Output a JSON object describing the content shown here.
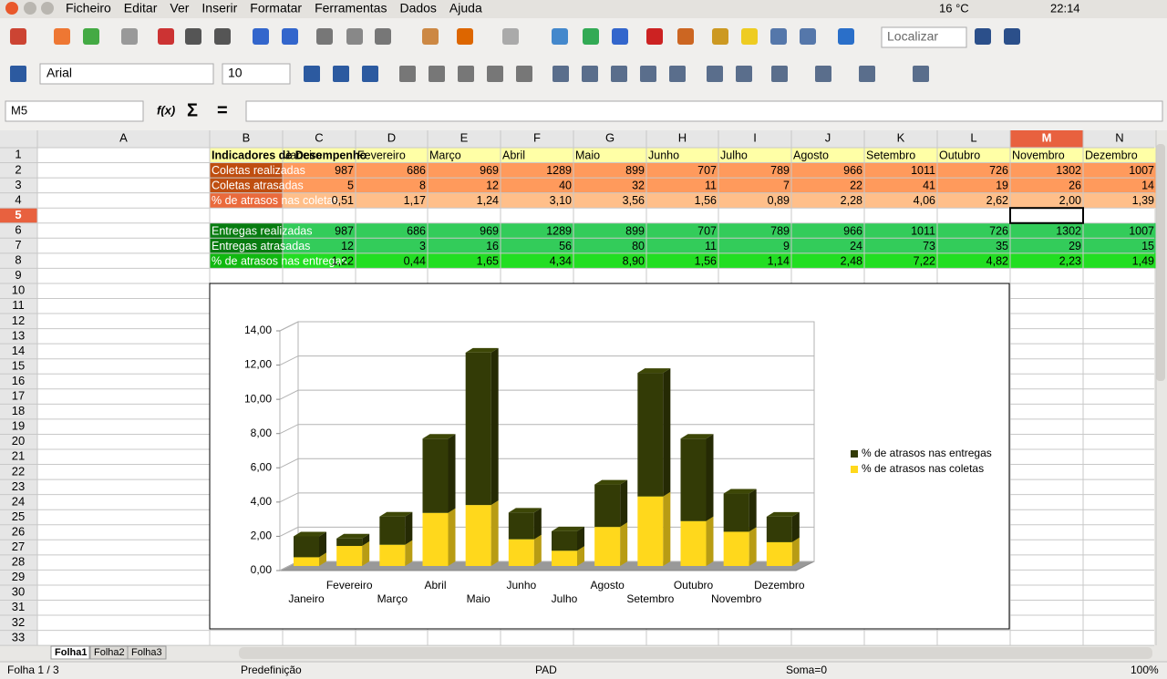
{
  "top_bar": {
    "menus": [
      "Ficheiro",
      "Editar",
      "Ver",
      "Inserir",
      "Formatar",
      "Ferramentas",
      "Dados",
      "Ajuda"
    ],
    "weather": "16 °C",
    "time": "22:14"
  },
  "toolbar": {
    "font": "Arial",
    "size": 10,
    "search": "Localizar"
  },
  "formula_bar": {
    "cell_ref": "M5",
    "symbols": [
      "f(x)",
      "Σ",
      "="
    ]
  },
  "sheet": {
    "columns": [
      "A",
      "B",
      "C",
      "D",
      "E",
      "F",
      "G",
      "H",
      "I",
      "J",
      "K",
      "L",
      "M",
      "N"
    ],
    "rows": [
      1,
      2,
      3,
      4,
      5,
      6,
      7,
      8,
      9,
      10,
      11,
      12,
      13,
      14,
      15,
      16,
      17,
      18,
      19,
      20,
      21,
      22,
      23,
      24,
      25,
      26,
      27,
      28,
      29,
      30,
      31,
      32,
      33
    ],
    "cells": [
      [
        "Indicadores de Desempenho",
        "Janeiro",
        "Fevereiro",
        "Março",
        "Abril",
        "Maio",
        "Junho",
        "Julho",
        "Agosto",
        "Setembro",
        "Outubro",
        "Novembro",
        "Dezembro"
      ],
      [
        "Coletas realizadas",
        987,
        686,
        969,
        1289,
        899,
        707,
        789,
        966,
        1011,
        726,
        1302,
        1007
      ],
      [
        "Coletas atrasadas",
        5,
        8,
        12,
        40,
        32,
        11,
        7,
        22,
        41,
        19,
        26,
        14
      ],
      [
        "% de atrasos nas coletas",
        "0,51",
        "1,17",
        "1,24",
        "3,10",
        "3,56",
        "1,56",
        "0,89",
        "2,28",
        "4,06",
        "2,62",
        "2,00",
        "1,39"
      ],
      [],
      [
        "Entregas realizadas",
        987,
        686,
        969,
        1289,
        899,
        707,
        789,
        966,
        1011,
        726,
        1302,
        1007
      ],
      [
        "Entregas atrasadas",
        12,
        3,
        16,
        56,
        80,
        11,
        9,
        24,
        73,
        35,
        29,
        15
      ],
      [
        "% de atrasos nas entregas",
        "1,22",
        "0,44",
        "1,65",
        "4,34",
        "8,90",
        "1,56",
        "1,14",
        "2,48",
        "7,22",
        "4,82",
        "2,23",
        "1,49"
      ]
    ]
  },
  "chart_data": {
    "type": "bar",
    "stacked": true,
    "categories": [
      "Janeiro",
      "Fevereiro",
      "Março",
      "Abril",
      "Maio",
      "Junho",
      "Julho",
      "Agosto",
      "Setembro",
      "Outubro",
      "Novembro",
      "Dezembro"
    ],
    "series": [
      {
        "name": "% de atrasos nas entregas",
        "color": "#333b06",
        "values": [
          1.22,
          0.44,
          1.65,
          4.34,
          8.9,
          1.56,
          1.14,
          2.48,
          7.22,
          4.82,
          2.23,
          1.49
        ]
      },
      {
        "name": "% de atrasos nas coletas",
        "color": "#ffd81c",
        "values": [
          0.51,
          1.17,
          1.24,
          3.1,
          3.56,
          1.56,
          0.89,
          2.28,
          4.06,
          2.62,
          2.0,
          1.39
        ]
      }
    ],
    "ylim": [
      0,
      14
    ],
    "yticks": [
      {
        "value": 0,
        "label": "0,00"
      },
      {
        "value": 2,
        "label": "2,00"
      },
      {
        "value": 4,
        "label": "4,00"
      },
      {
        "value": 6,
        "label": "6,00"
      },
      {
        "value": 8,
        "label": "8,00"
      },
      {
        "value": 10,
        "label": "10,00"
      },
      {
        "value": 12,
        "label": "12,00"
      },
      {
        "value": 14,
        "label": "14,00"
      }
    ],
    "grid": true,
    "legend": "right"
  },
  "sheet_tabs": [
    "Folha1",
    "Folha2",
    "Folha3"
  ],
  "status_bar": {
    "sheet": "Folha 1 / 3",
    "style": "Predefinição",
    "mode": "PAD",
    "sum": "Soma=0",
    "zoom": "100%"
  }
}
